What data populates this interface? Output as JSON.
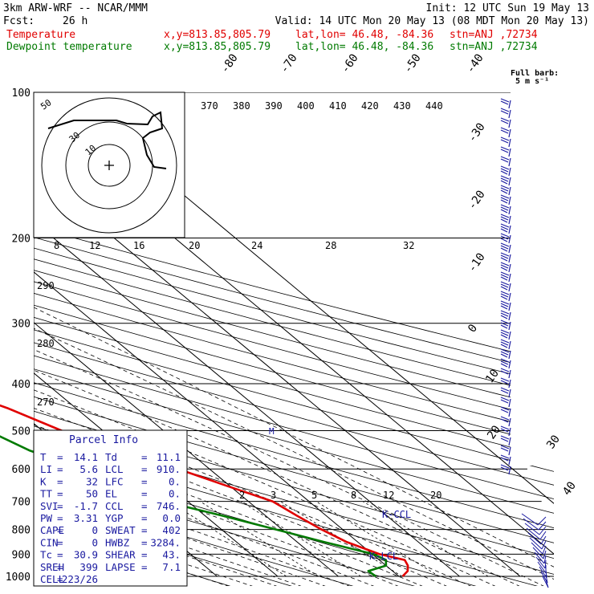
{
  "header": {
    "model": "3km ARW-WRF -- NCAR/MMM",
    "init": "Init: 12 UTC Sun 19 May 13",
    "fcst_label": "Fcst:",
    "fcst_value": "26 h",
    "valid": "Valid: 14 UTC Mon 20 May 13 (08 MDT Mon 20 May 13)",
    "temp_label": "Temperature",
    "dew_label": "Dewpoint temperature",
    "xy": "x,y=813.85,805.79",
    "latlon": "lat,lon= 46.48, -84.36",
    "stn": "stn=ANJ ,72734"
  },
  "colors": {
    "temperature": "#e00000",
    "dewpoint": "#007a00",
    "barb": "#1a1aa0"
  },
  "chart_data": {
    "type": "line",
    "y_axis": {
      "label": "pressure",
      "ticks": [
        100,
        200,
        300,
        400,
        500,
        600,
        700,
        800,
        900,
        1000
      ]
    },
    "isotherm_labels": [
      "-80",
      "-70",
      "-60",
      "-50",
      "-40",
      "-30",
      "-20",
      "-10",
      "0",
      "10",
      "20",
      "30",
      "40"
    ],
    "theta_labels": [
      "370",
      "380",
      "390",
      "400",
      "410",
      "420",
      "430",
      "440"
    ],
    "hodograph": {
      "units": "kts",
      "rings": [
        "30",
        "50"
      ],
      "speed_labels": [
        "8",
        "12",
        "16",
        "20",
        "24",
        "28",
        "32"
      ]
    },
    "theta_side_labels": [
      "290",
      "280",
      "270"
    ],
    "mixing_ratio_labels": [
      "2",
      "3",
      "5",
      "8",
      "12",
      "20"
    ],
    "annotations": {
      "ccl": "K-CCL",
      "lcl": "K-LCL",
      "m": "M",
      "barb_key": "Full barb:",
      "barb_key_units": "5 m s⁻¹"
    },
    "series": [
      {
        "name": "Temperature",
        "points": [
          [
            1000,
            10.6
          ],
          [
            975,
            12.5
          ],
          [
            950,
            13.6
          ],
          [
            925,
            14.2
          ],
          [
            900,
            11.2
          ],
          [
            850,
            8.2
          ],
          [
            800,
            6.5
          ],
          [
            750,
            5.2
          ],
          [
            700,
            4.0
          ],
          [
            650,
            -0.5
          ],
          [
            600,
            -5.2
          ],
          [
            550,
            -10.8
          ],
          [
            500,
            -16.8
          ],
          [
            450,
            -21.2
          ],
          [
            400,
            -27.8
          ],
          [
            350,
            -33.5
          ],
          [
            300,
            -41.0
          ],
          [
            250,
            -50.5
          ],
          [
            200,
            -57.5
          ],
          [
            170,
            -58.5
          ],
          [
            150,
            -57.5
          ],
          [
            130,
            -55.0
          ],
          [
            120,
            -52.5
          ],
          [
            110,
            -50.0
          ],
          [
            100,
            -47.5
          ]
        ]
      },
      {
        "name": "Dewpoint temperature",
        "points": [
          [
            1000,
            6.2
          ],
          [
            975,
            6.0
          ],
          [
            950,
            10.0
          ],
          [
            925,
            11.1
          ],
          [
            900,
            10.2
          ],
          [
            850,
            4.5
          ],
          [
            800,
            -1.0
          ],
          [
            750,
            -7.0
          ],
          [
            700,
            -14.0
          ],
          [
            650,
            -19.5
          ],
          [
            600,
            -21.0
          ],
          [
            550,
            -26.0
          ],
          [
            500,
            -29.0
          ],
          [
            450,
            -44.0
          ],
          [
            430,
            -40.5
          ],
          [
            400,
            -31.5
          ],
          [
            380,
            -32.0
          ],
          [
            350,
            -35.5
          ],
          [
            300,
            -43.0
          ],
          [
            250,
            -52.5
          ],
          [
            200,
            -63.0
          ],
          [
            170,
            -64.5
          ],
          [
            150,
            -63.0
          ],
          [
            130,
            -63.5
          ],
          [
            110,
            -67.0
          ],
          [
            100,
            -70.0
          ]
        ]
      }
    ]
  },
  "parcel": {
    "title": "Parcel Info",
    "rows": [
      [
        "T",
        "=",
        "14.1",
        "Td",
        "=",
        "11.1"
      ],
      [
        "LI",
        "=",
        "5.6",
        "LCL",
        "=",
        "910."
      ],
      [
        "K",
        "=",
        "32",
        "LFC",
        "=",
        "0."
      ],
      [
        "TT",
        "=",
        "50",
        "EL",
        "=",
        "0."
      ],
      [
        "SVI",
        "=",
        "-1.7",
        "CCL",
        "=",
        "746."
      ],
      [
        "PW",
        "=",
        "3.31",
        "YGP",
        "=",
        "0.0"
      ],
      [
        "CAPE",
        "=",
        "0",
        "SWEAT",
        "=",
        "402"
      ],
      [
        "CIN",
        "=",
        "0",
        "HWBZ",
        "=",
        "3284."
      ],
      [
        "Tc",
        "=",
        "30.9",
        "SHEAR",
        "=",
        "43."
      ],
      [
        "SREH",
        "=",
        "399",
        "LAPSE",
        "=",
        "7.1"
      ],
      [
        "CELL",
        "=",
        "223/26",
        "",
        "",
        ""
      ]
    ]
  }
}
